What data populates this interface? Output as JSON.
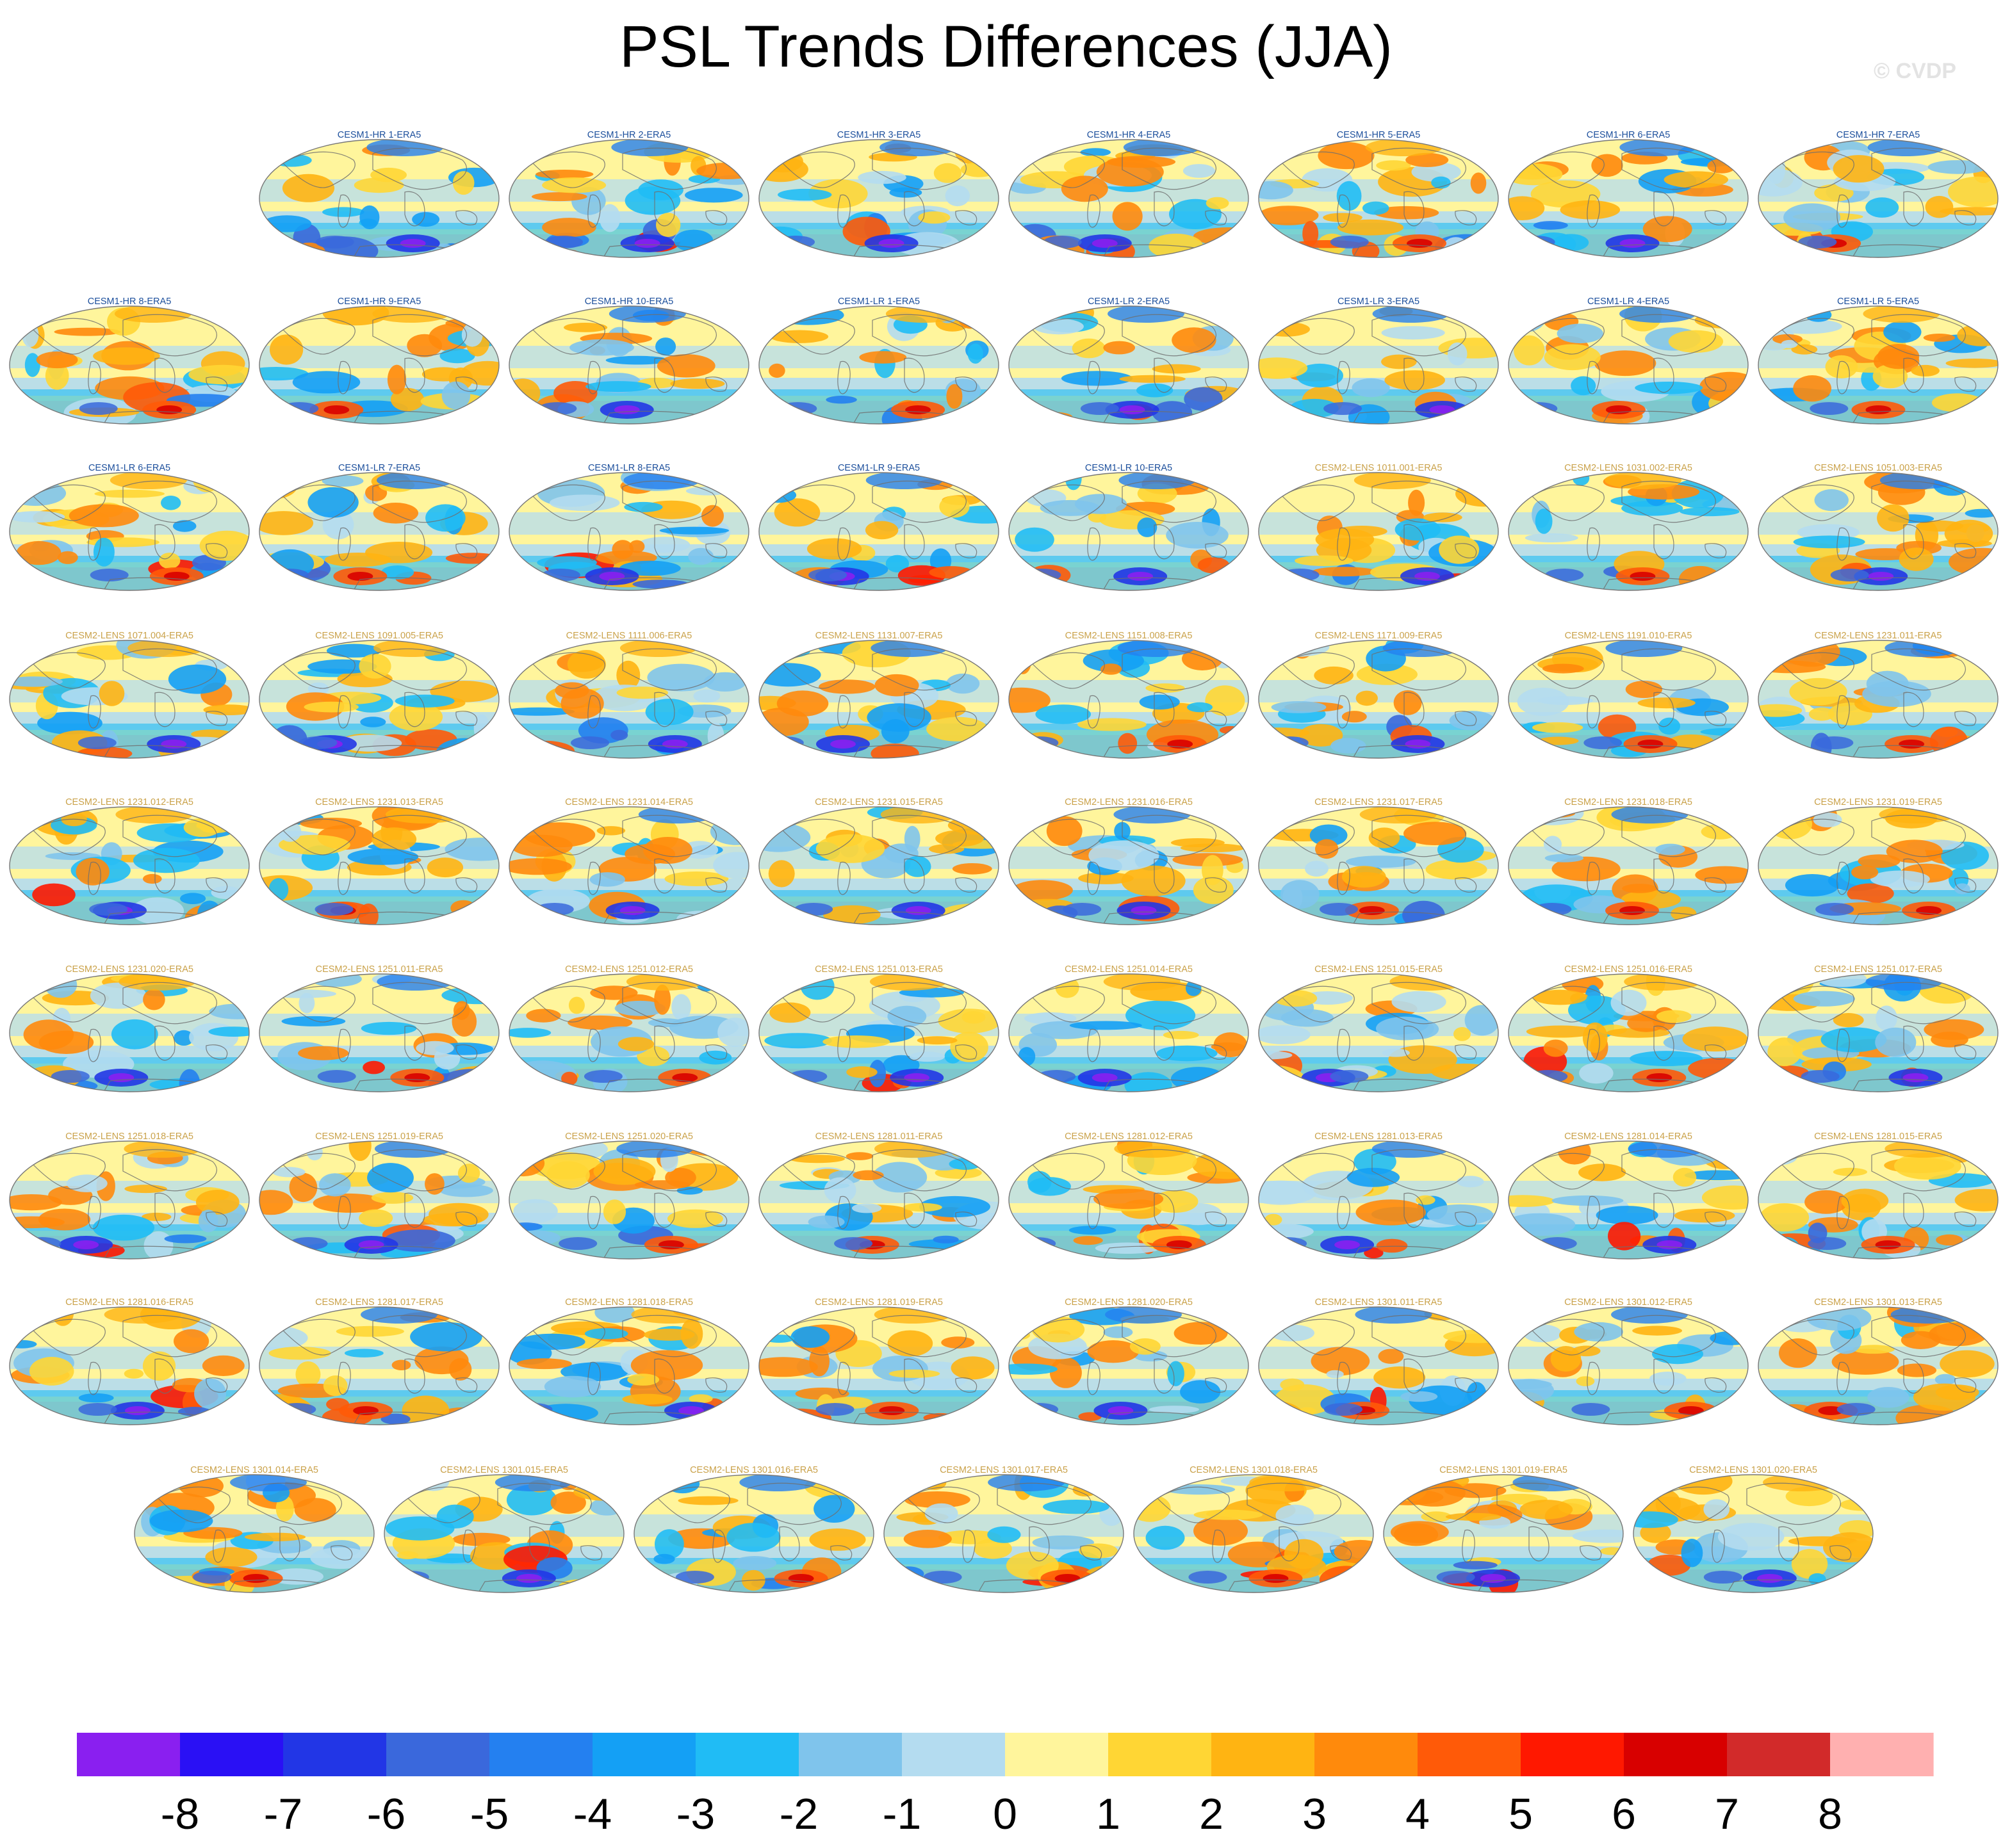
{
  "chart_data": {
    "type": "heatmap",
    "title": "PSL Trends Differences (JJA)",
    "watermark": "© CVDP",
    "colorbar": {
      "ticks": [
        "-8",
        "-7",
        "-6",
        "-5",
        "-4",
        "-3",
        "-2",
        "-1",
        "0",
        "1",
        "2",
        "3",
        "4",
        "5",
        "6",
        "7",
        "8"
      ],
      "range": [
        -8,
        8
      ],
      "colors": [
        "#8a1ff0",
        "#2a10f5",
        "#2236e6",
        "#3a68dc",
        "#2480f0",
        "#14a0f5",
        "#20bcf5",
        "#7fc4ec",
        "#b4dcf0",
        "#fff59c",
        "#ffd634",
        "#ffb412",
        "#ff8a0c",
        "#ff5a08",
        "#ff1800",
        "#d80000",
        "#d22a2a",
        "#ffb0b0"
      ]
    },
    "title_colors": {
      "CESM1": "#1c4f9c",
      "CESM2": "#caa24a"
    },
    "panels": [
      {
        "label": "CESM1-HR 1-ERA5",
        "group": "CESM1"
      },
      {
        "label": "CESM1-HR 2-ERA5",
        "group": "CESM1"
      },
      {
        "label": "CESM1-HR 3-ERA5",
        "group": "CESM1"
      },
      {
        "label": "CESM1-HR 4-ERA5",
        "group": "CESM1"
      },
      {
        "label": "CESM1-HR 5-ERA5",
        "group": "CESM1"
      },
      {
        "label": "CESM1-HR 6-ERA5",
        "group": "CESM1"
      },
      {
        "label": "CESM1-HR 7-ERA5",
        "group": "CESM1"
      },
      {
        "label": "CESM1-HR 8-ERA5",
        "group": "CESM1"
      },
      {
        "label": "CESM1-HR 9-ERA5",
        "group": "CESM1"
      },
      {
        "label": "CESM1-HR 10-ERA5",
        "group": "CESM1"
      },
      {
        "label": "CESM1-LR 1-ERA5",
        "group": "CESM1"
      },
      {
        "label": "CESM1-LR 2-ERA5",
        "group": "CESM1"
      },
      {
        "label": "CESM1-LR 3-ERA5",
        "group": "CESM1"
      },
      {
        "label": "CESM1-LR 4-ERA5",
        "group": "CESM1"
      },
      {
        "label": "CESM1-LR 5-ERA5",
        "group": "CESM1"
      },
      {
        "label": "CESM1-LR 6-ERA5",
        "group": "CESM1"
      },
      {
        "label": "CESM1-LR 7-ERA5",
        "group": "CESM1"
      },
      {
        "label": "CESM1-LR 8-ERA5",
        "group": "CESM1"
      },
      {
        "label": "CESM1-LR 9-ERA5",
        "group": "CESM1"
      },
      {
        "label": "CESM1-LR 10-ERA5",
        "group": "CESM1"
      },
      {
        "label": "CESM2-LENS 1011.001-ERA5",
        "group": "CESM2"
      },
      {
        "label": "CESM2-LENS 1031.002-ERA5",
        "group": "CESM2"
      },
      {
        "label": "CESM2-LENS 1051.003-ERA5",
        "group": "CESM2"
      },
      {
        "label": "CESM2-LENS 1071.004-ERA5",
        "group": "CESM2"
      },
      {
        "label": "CESM2-LENS 1091.005-ERA5",
        "group": "CESM2"
      },
      {
        "label": "CESM2-LENS 1111.006-ERA5",
        "group": "CESM2"
      },
      {
        "label": "CESM2-LENS 1131.007-ERA5",
        "group": "CESM2"
      },
      {
        "label": "CESM2-LENS 1151.008-ERA5",
        "group": "CESM2"
      },
      {
        "label": "CESM2-LENS 1171.009-ERA5",
        "group": "CESM2"
      },
      {
        "label": "CESM2-LENS 1191.010-ERA5",
        "group": "CESM2"
      },
      {
        "label": "CESM2-LENS 1231.011-ERA5",
        "group": "CESM2"
      },
      {
        "label": "CESM2-LENS 1231.012-ERA5",
        "group": "CESM2"
      },
      {
        "label": "CESM2-LENS 1231.013-ERA5",
        "group": "CESM2"
      },
      {
        "label": "CESM2-LENS 1231.014-ERA5",
        "group": "CESM2"
      },
      {
        "label": "CESM2-LENS 1231.015-ERA5",
        "group": "CESM2"
      },
      {
        "label": "CESM2-LENS 1231.016-ERA5",
        "group": "CESM2"
      },
      {
        "label": "CESM2-LENS 1231.017-ERA5",
        "group": "CESM2"
      },
      {
        "label": "CESM2-LENS 1231.018-ERA5",
        "group": "CESM2"
      },
      {
        "label": "CESM2-LENS 1231.019-ERA5",
        "group": "CESM2"
      },
      {
        "label": "CESM2-LENS 1231.020-ERA5",
        "group": "CESM2"
      },
      {
        "label": "CESM2-LENS 1251.011-ERA5",
        "group": "CESM2"
      },
      {
        "label": "CESM2-LENS 1251.012-ERA5",
        "group": "CESM2"
      },
      {
        "label": "CESM2-LENS 1251.013-ERA5",
        "group": "CESM2"
      },
      {
        "label": "CESM2-LENS 1251.014-ERA5",
        "group": "CESM2"
      },
      {
        "label": "CESM2-LENS 1251.015-ERA5",
        "group": "CESM2"
      },
      {
        "label": "CESM2-LENS 1251.016-ERA5",
        "group": "CESM2"
      },
      {
        "label": "CESM2-LENS 1251.017-ERA5",
        "group": "CESM2"
      },
      {
        "label": "CESM2-LENS 1251.018-ERA5",
        "group": "CESM2"
      },
      {
        "label": "CESM2-LENS 1251.019-ERA5",
        "group": "CESM2"
      },
      {
        "label": "CESM2-LENS 1251.020-ERA5",
        "group": "CESM2"
      },
      {
        "label": "CESM2-LENS 1281.011-ERA5",
        "group": "CESM2"
      },
      {
        "label": "CESM2-LENS 1281.012-ERA5",
        "group": "CESM2"
      },
      {
        "label": "CESM2-LENS 1281.013-ERA5",
        "group": "CESM2"
      },
      {
        "label": "CESM2-LENS 1281.014-ERA5",
        "group": "CESM2"
      },
      {
        "label": "CESM2-LENS 1281.015-ERA5",
        "group": "CESM2"
      },
      {
        "label": "CESM2-LENS 1281.016-ERA5",
        "group": "CESM2"
      },
      {
        "label": "CESM2-LENS 1281.017-ERA5",
        "group": "CESM2"
      },
      {
        "label": "CESM2-LENS 1281.018-ERA5",
        "group": "CESM2"
      },
      {
        "label": "CESM2-LENS 1281.019-ERA5",
        "group": "CESM2"
      },
      {
        "label": "CESM2-LENS 1281.020-ERA5",
        "group": "CESM2"
      },
      {
        "label": "CESM2-LENS 1301.011-ERA5",
        "group": "CESM2"
      },
      {
        "label": "CESM2-LENS 1301.012-ERA5",
        "group": "CESM2"
      },
      {
        "label": "CESM2-LENS 1301.013-ERA5",
        "group": "CESM2"
      },
      {
        "label": "CESM2-LENS 1301.014-ERA5",
        "group": "CESM2"
      },
      {
        "label": "CESM2-LENS 1301.015-ERA5",
        "group": "CESM2"
      },
      {
        "label": "CESM2-LENS 1301.016-ERA5",
        "group": "CESM2"
      },
      {
        "label": "CESM2-LENS 1301.017-ERA5",
        "group": "CESM2"
      },
      {
        "label": "CESM2-LENS 1301.018-ERA5",
        "group": "CESM2"
      },
      {
        "label": "CESM2-LENS 1301.019-ERA5",
        "group": "CESM2"
      },
      {
        "label": "CESM2-LENS 1301.020-ERA5",
        "group": "CESM2"
      }
    ]
  }
}
